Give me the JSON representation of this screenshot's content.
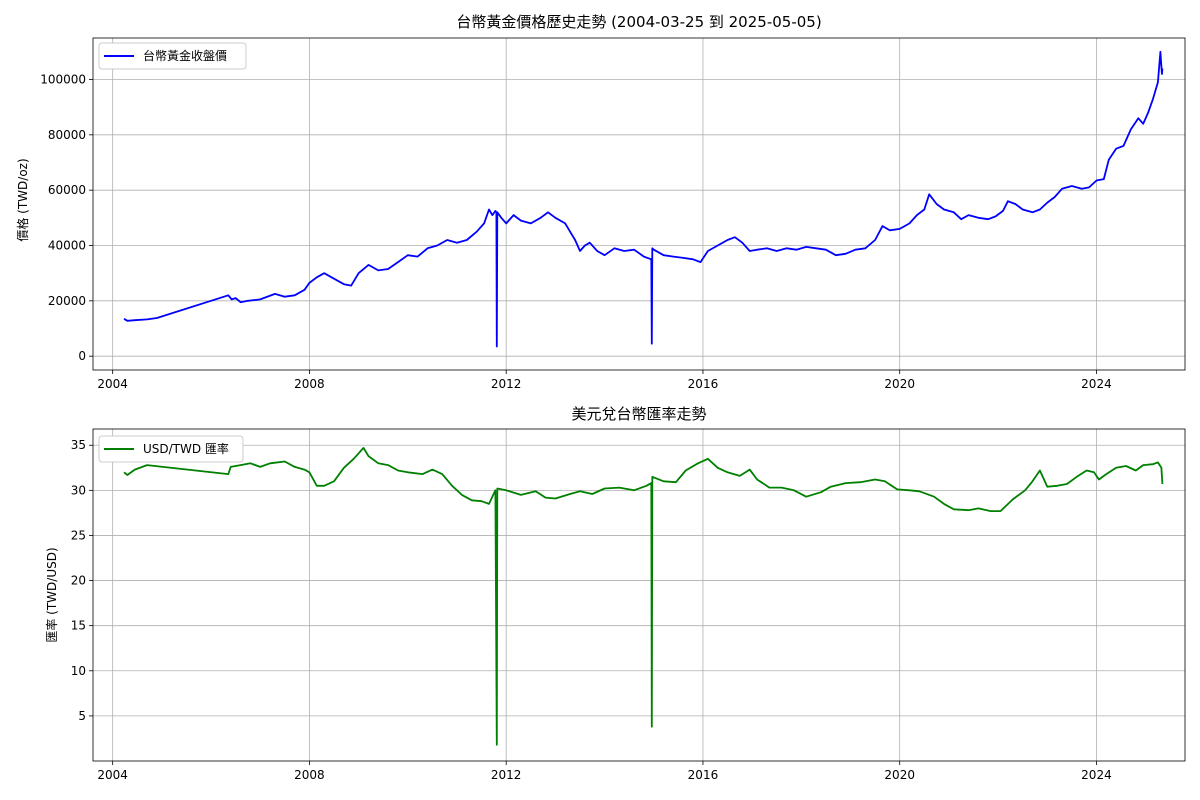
{
  "chart_data": [
    {
      "type": "line",
      "title": "台幣黃金價格歷史走勢 (2004-03-25 到 2025-05-05)",
      "xlabel": "",
      "ylabel": "價格 (TWD/oz)",
      "xlim": [
        2003.6,
        2025.8
      ],
      "ylim": [
        -5000,
        115000
      ],
      "x_ticks": [
        2004,
        2008,
        2012,
        2016,
        2020,
        2024
      ],
      "x_tick_labels": [
        "2004",
        "2008",
        "2012",
        "2016",
        "2020",
        "2024"
      ],
      "y_ticks": [
        0,
        20000,
        40000,
        60000,
        80000,
        100000
      ],
      "y_tick_labels": [
        "0",
        "20000",
        "40000",
        "60000",
        "80000",
        "100000"
      ],
      "grid": true,
      "legend_position": "upper-left",
      "series": [
        {
          "name": "台幣黃金收盤價",
          "color": "#0000ff",
          "points": [
            [
              2004.23,
              13500
            ],
            [
              2004.3,
              12800
            ],
            [
              2004.45,
              13000
            ],
            [
              2004.7,
              13300
            ],
            [
              2004.9,
              13800
            ],
            [
              2006.35,
              22000
            ],
            [
              2006.42,
              20500
            ],
            [
              2006.5,
              21000
            ],
            [
              2006.6,
              19500
            ],
            [
              2006.75,
              20000
            ],
            [
              2007.0,
              20500
            ],
            [
              2007.3,
              22500
            ],
            [
              2007.5,
              21500
            ],
            [
              2007.7,
              22000
            ],
            [
              2007.9,
              24000
            ],
            [
              2008.0,
              26500
            ],
            [
              2008.15,
              28500
            ],
            [
              2008.3,
              30000
            ],
            [
              2008.5,
              28000
            ],
            [
              2008.7,
              26000
            ],
            [
              2008.85,
              25500
            ],
            [
              2009.0,
              30000
            ],
            [
              2009.2,
              33000
            ],
            [
              2009.4,
              31000
            ],
            [
              2009.6,
              31500
            ],
            [
              2009.8,
              34000
            ],
            [
              2010.0,
              36500
            ],
            [
              2010.2,
              36000
            ],
            [
              2010.4,
              39000
            ],
            [
              2010.6,
              40000
            ],
            [
              2010.8,
              42000
            ],
            [
              2011.0,
              41000
            ],
            [
              2011.2,
              42000
            ],
            [
              2011.4,
              45000
            ],
            [
              2011.55,
              48000
            ],
            [
              2011.65,
              53000
            ],
            [
              2011.72,
              51000
            ],
            [
              2011.78,
              52500
            ],
            [
              2011.8,
              52000
            ],
            [
              2011.81,
              3500
            ],
            [
              2011.82,
              52000
            ],
            [
              2011.9,
              50000
            ],
            [
              2012.0,
              48000
            ],
            [
              2012.15,
              51000
            ],
            [
              2012.3,
              49000
            ],
            [
              2012.5,
              48000
            ],
            [
              2012.7,
              50000
            ],
            [
              2012.85,
              52000
            ],
            [
              2013.0,
              50000
            ],
            [
              2013.2,
              48000
            ],
            [
              2013.3,
              45000
            ],
            [
              2013.4,
              42000
            ],
            [
              2013.5,
              38000
            ],
            [
              2013.6,
              40000
            ],
            [
              2013.7,
              41000
            ],
            [
              2013.85,
              38000
            ],
            [
              2014.0,
              36500
            ],
            [
              2014.2,
              39000
            ],
            [
              2014.4,
              38000
            ],
            [
              2014.6,
              38500
            ],
            [
              2014.8,
              36000
            ],
            [
              2014.95,
              35000
            ],
            [
              2014.96,
              4500
            ],
            [
              2014.97,
              39000
            ],
            [
              2015.0,
              38500
            ],
            [
              2015.2,
              36500
            ],
            [
              2015.4,
              36000
            ],
            [
              2015.6,
              35500
            ],
            [
              2015.8,
              35000
            ],
            [
              2015.95,
              34000
            ],
            [
              2016.1,
              38000
            ],
            [
              2016.3,
              40000
            ],
            [
              2016.5,
              42000
            ],
            [
              2016.65,
              43000
            ],
            [
              2016.8,
              41000
            ],
            [
              2016.95,
              38000
            ],
            [
              2017.1,
              38500
            ],
            [
              2017.3,
              39000
            ],
            [
              2017.5,
              38000
            ],
            [
              2017.7,
              39000
            ],
            [
              2017.9,
              38500
            ],
            [
              2018.1,
              39500
            ],
            [
              2018.3,
              39000
            ],
            [
              2018.5,
              38500
            ],
            [
              2018.7,
              36500
            ],
            [
              2018.9,
              37000
            ],
            [
              2019.1,
              38500
            ],
            [
              2019.3,
              39000
            ],
            [
              2019.5,
              42000
            ],
            [
              2019.65,
              47000
            ],
            [
              2019.8,
              45500
            ],
            [
              2020.0,
              46000
            ],
            [
              2020.2,
              48000
            ],
            [
              2020.35,
              51000
            ],
            [
              2020.5,
              53000
            ],
            [
              2020.6,
              58500
            ],
            [
              2020.75,
              55000
            ],
            [
              2020.9,
              53000
            ],
            [
              2021.1,
              52000
            ],
            [
              2021.25,
              49500
            ],
            [
              2021.4,
              51000
            ],
            [
              2021.6,
              50000
            ],
            [
              2021.8,
              49500
            ],
            [
              2021.95,
              50500
            ],
            [
              2022.1,
              52500
            ],
            [
              2022.2,
              56000
            ],
            [
              2022.35,
              55000
            ],
            [
              2022.5,
              53000
            ],
            [
              2022.7,
              52000
            ],
            [
              2022.85,
              53000
            ],
            [
              2023.0,
              55500
            ],
            [
              2023.15,
              57500
            ],
            [
              2023.3,
              60500
            ],
            [
              2023.5,
              61500
            ],
            [
              2023.7,
              60500
            ],
            [
              2023.85,
              61000
            ],
            [
              2024.0,
              63500
            ],
            [
              2024.15,
              64000
            ],
            [
              2024.25,
              71000
            ],
            [
              2024.4,
              75000
            ],
            [
              2024.55,
              76000
            ],
            [
              2024.7,
              82000
            ],
            [
              2024.85,
              86000
            ],
            [
              2024.95,
              84000
            ],
            [
              2025.05,
              88000
            ],
            [
              2025.15,
              93000
            ],
            [
              2025.25,
              99000
            ],
            [
              2025.3,
              110000
            ],
            [
              2025.33,
              102000
            ],
            [
              2025.34,
              104000
            ]
          ]
        }
      ]
    },
    {
      "type": "line",
      "title": "美元兌台幣匯率走勢",
      "xlabel": "",
      "ylabel": "匯率 (TWD/USD)",
      "xlim": [
        2003.6,
        2025.8
      ],
      "ylim": [
        0.0,
        36.8
      ],
      "x_ticks": [
        2004,
        2008,
        2012,
        2016,
        2020,
        2024
      ],
      "x_tick_labels": [
        "2004",
        "2008",
        "2012",
        "2016",
        "2020",
        "2024"
      ],
      "y_ticks": [
        5,
        10,
        15,
        20,
        25,
        30,
        35
      ],
      "y_tick_labels": [
        "5",
        "10",
        "15",
        "20",
        "25",
        "30",
        "35"
      ],
      "grid": true,
      "legend_position": "upper-left",
      "series": [
        {
          "name": "USD/TWD 匯率",
          "color": "#008000",
          "points": [
            [
              2004.23,
              32.0
            ],
            [
              2004.3,
              31.7
            ],
            [
              2004.45,
              32.3
            ],
            [
              2004.7,
              32.8
            ],
            [
              2006.35,
              31.8
            ],
            [
              2006.4,
              32.6
            ],
            [
              2006.6,
              32.8
            ],
            [
              2006.8,
              33.0
            ],
            [
              2007.0,
              32.6
            ],
            [
              2007.2,
              33.0
            ],
            [
              2007.5,
              33.2
            ],
            [
              2007.7,
              32.6
            ],
            [
              2007.9,
              32.3
            ],
            [
              2008.0,
              32.0
            ],
            [
              2008.15,
              30.5
            ],
            [
              2008.3,
              30.5
            ],
            [
              2008.5,
              31.0
            ],
            [
              2008.7,
              32.5
            ],
            [
              2008.9,
              33.5
            ],
            [
              2009.1,
              34.7
            ],
            [
              2009.2,
              33.8
            ],
            [
              2009.4,
              33.0
            ],
            [
              2009.6,
              32.8
            ],
            [
              2009.8,
              32.2
            ],
            [
              2010.0,
              32.0
            ],
            [
              2010.3,
              31.8
            ],
            [
              2010.5,
              32.3
            ],
            [
              2010.7,
              31.8
            ],
            [
              2010.9,
              30.5
            ],
            [
              2011.1,
              29.5
            ],
            [
              2011.3,
              28.9
            ],
            [
              2011.5,
              28.8
            ],
            [
              2011.65,
              28.5
            ],
            [
              2011.78,
              30.0
            ],
            [
              2011.81,
              1.8
            ],
            [
              2011.82,
              30.2
            ],
            [
              2012.0,
              30.0
            ],
            [
              2012.3,
              29.5
            ],
            [
              2012.6,
              29.9
            ],
            [
              2012.8,
              29.2
            ],
            [
              2013.0,
              29.1
            ],
            [
              2013.3,
              29.6
            ],
            [
              2013.5,
              29.9
            ],
            [
              2013.75,
              29.6
            ],
            [
              2014.0,
              30.2
            ],
            [
              2014.3,
              30.3
            ],
            [
              2014.6,
              30.0
            ],
            [
              2014.85,
              30.5
            ],
            [
              2014.95,
              30.8
            ],
            [
              2014.96,
              3.8
            ],
            [
              2014.97,
              31.5
            ],
            [
              2015.2,
              31.0
            ],
            [
              2015.45,
              30.9
            ],
            [
              2015.65,
              32.2
            ],
            [
              2015.9,
              33.0
            ],
            [
              2016.1,
              33.5
            ],
            [
              2016.3,
              32.5
            ],
            [
              2016.5,
              32.0
            ],
            [
              2016.75,
              31.6
            ],
            [
              2016.95,
              32.3
            ],
            [
              2017.1,
              31.2
            ],
            [
              2017.35,
              30.3
            ],
            [
              2017.6,
              30.3
            ],
            [
              2017.85,
              30.0
            ],
            [
              2018.1,
              29.3
            ],
            [
              2018.4,
              29.8
            ],
            [
              2018.6,
              30.4
            ],
            [
              2018.9,
              30.8
            ],
            [
              2019.2,
              30.9
            ],
            [
              2019.5,
              31.2
            ],
            [
              2019.7,
              31.0
            ],
            [
              2019.95,
              30.1
            ],
            [
              2020.2,
              30.0
            ],
            [
              2020.4,
              29.9
            ],
            [
              2020.7,
              29.3
            ],
            [
              2020.9,
              28.5
            ],
            [
              2021.1,
              27.9
            ],
            [
              2021.4,
              27.8
            ],
            [
              2021.6,
              28.0
            ],
            [
              2021.85,
              27.7
            ],
            [
              2022.05,
              27.7
            ],
            [
              2022.3,
              29.0
            ],
            [
              2022.55,
              30.0
            ],
            [
              2022.7,
              31.0
            ],
            [
              2022.85,
              32.2
            ],
            [
              2023.0,
              30.4
            ],
            [
              2023.2,
              30.5
            ],
            [
              2023.4,
              30.7
            ],
            [
              2023.6,
              31.5
            ],
            [
              2023.8,
              32.2
            ],
            [
              2023.95,
              32.0
            ],
            [
              2024.05,
              31.2
            ],
            [
              2024.2,
              31.8
            ],
            [
              2024.4,
              32.5
            ],
            [
              2024.6,
              32.7
            ],
            [
              2024.8,
              32.2
            ],
            [
              2024.95,
              32.8
            ],
            [
              2025.15,
              32.9
            ],
            [
              2025.25,
              33.1
            ],
            [
              2025.32,
              32.5
            ],
            [
              2025.34,
              30.7
            ]
          ]
        }
      ]
    }
  ]
}
